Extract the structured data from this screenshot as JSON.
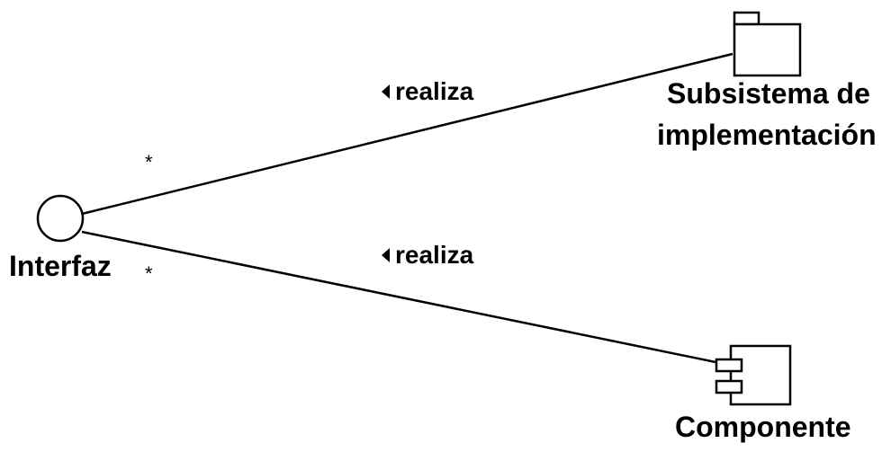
{
  "interface": {
    "label": "Interfaz"
  },
  "subsystem": {
    "label_line1": "Subsistema de",
    "label_line2": "implementación"
  },
  "component": {
    "label": "Componente"
  },
  "relations": [
    {
      "label": "realiza",
      "multiplicity": "*"
    },
    {
      "label": "realiza",
      "multiplicity": "*"
    }
  ],
  "colors": {
    "stroke": "#000000",
    "background": "#ffffff"
  }
}
